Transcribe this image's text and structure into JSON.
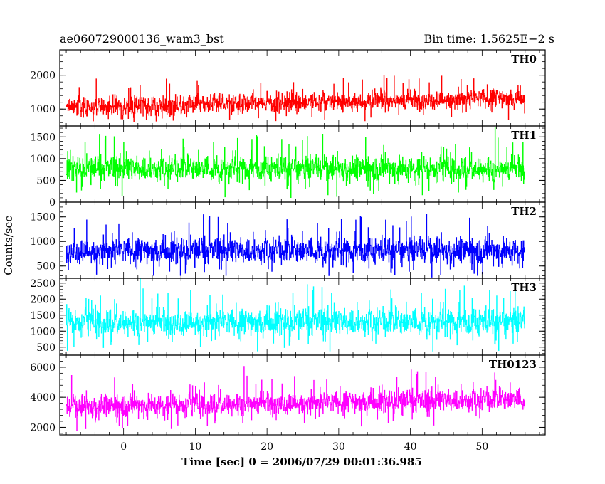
{
  "header": {
    "title": "ae060729000136_wam3_bst",
    "bin_time": "Bin time: 1.5625E−2 s"
  },
  "chart_data": {
    "type": "line",
    "xlabel": "Time [sec] 0 = 2006/07/29 00:01:36.985",
    "ylabel": "Counts/sec",
    "xlim": [
      -8.9,
      58.8
    ],
    "x_ticks": [
      0,
      10,
      20,
      30,
      40,
      50
    ],
    "x_tick_labels": [
      "0",
      "10",
      "20",
      "30",
      "40",
      "50"
    ],
    "data_x_range": [
      -8,
      56
    ],
    "panels": [
      {
        "name": "TH0",
        "color": "#ff0000",
        "ylim": [
          500,
          2750
        ],
        "ticks": [
          1000,
          2000
        ],
        "tick_labels": [
          "1000",
          "2000"
        ],
        "trend_start": 1050,
        "trend_end": 1350,
        "spread": 430,
        "floor": 620
      },
      {
        "name": "TH1",
        "color": "#00ff00",
        "ylim": [
          0,
          1750
        ],
        "ticks": [
          0,
          500,
          1000,
          1500
        ],
        "tick_labels": [
          "0",
          "500",
          "1000",
          "1500"
        ],
        "trend_start": 780,
        "trend_end": 780,
        "spread": 420,
        "floor": 40
      },
      {
        "name": "TH2",
        "color": "#0000ff",
        "ylim": [
          250,
          1800
        ],
        "ticks": [
          500,
          1000,
          1500
        ],
        "tick_labels": [
          "500",
          "1000",
          "1500"
        ],
        "trend_start": 820,
        "trend_end": 820,
        "spread": 390,
        "floor": 270
      },
      {
        "name": "TH3",
        "color": "#00ffff",
        "ylim": [
          250,
          2650
        ],
        "ticks": [
          500,
          1000,
          1500,
          2000,
          2500
        ],
        "tick_labels": [
          "500",
          "1000",
          "1500",
          "2000",
          "2500"
        ],
        "trend_start": 1300,
        "trend_end": 1300,
        "spread": 620,
        "floor": 320
      },
      {
        "name": "TH0123",
        "color": "#ff00ff",
        "ylim": [
          1500,
          6800
        ],
        "ticks": [
          2000,
          4000,
          6000
        ],
        "tick_labels": [
          "2000",
          "4000",
          "6000"
        ],
        "trend_start": 3400,
        "trend_end": 3900,
        "spread": 1100,
        "floor": 1750
      }
    ]
  }
}
